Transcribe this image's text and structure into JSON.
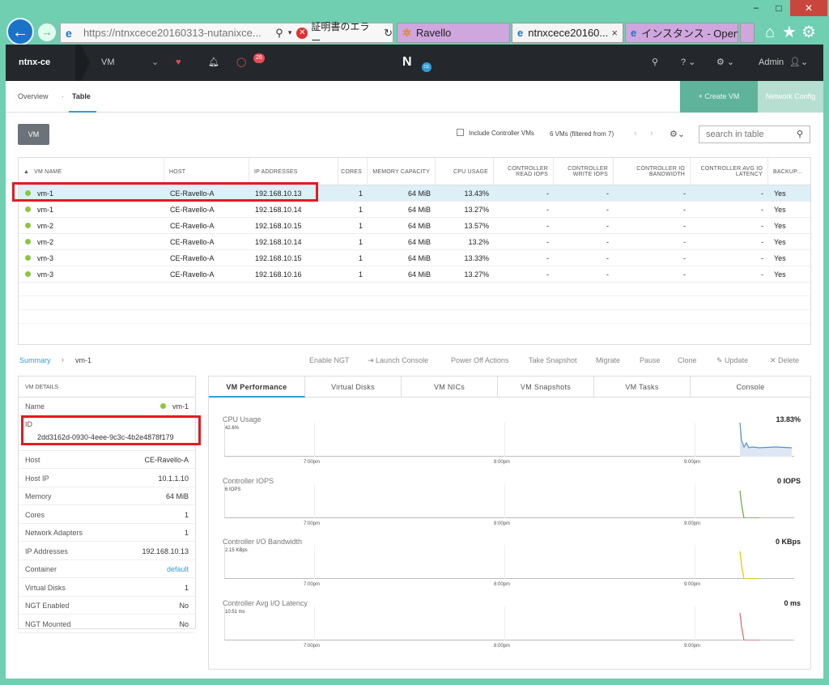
{
  "browser": {
    "url": "https://ntnxcece20160313-nutanixce...",
    "cert_error": "証明書のエラー",
    "tabs": [
      {
        "label": "Ravello"
      },
      {
        "label": "ntnxcece20160...",
        "close": "×"
      },
      {
        "label": "インスタンス - OpenS...",
        "close": "×"
      }
    ],
    "window_controls": {
      "minimize": "−",
      "maximize": "□",
      "close": "✕"
    }
  },
  "topbar": {
    "cluster": "ntnx-ce",
    "menu": "VM",
    "alert_count": "26",
    "logo": "N",
    "logo_badge": "CE",
    "user": "Admin"
  },
  "subnav": {
    "overview": "Overview",
    "table": "Table",
    "create_vm": "+   Create VM",
    "network_config": "Network Config"
  },
  "toolbar": {
    "vm_button": "VM",
    "include_controller": "Include Controller VMs",
    "count": "6 VMs (filtered from 7)",
    "search_placeholder": "search in table"
  },
  "table": {
    "columns": [
      "VM NAME",
      "HOST",
      "IP ADDRESSES",
      "CORES",
      "MEMORY CAPACITY",
      "CPU USAGE",
      "CONTROLLER READ IOPS",
      "CONTROLLER WRITE IOPS",
      "CONTROLLER IO BANDWIDTH",
      "CONTROLLER AVG IO LATENCY",
      "BACKUP..."
    ],
    "rows": [
      {
        "name": "vm-1",
        "host": "CE-Ravello-A",
        "ip": "192.168.10.13",
        "cores": "1",
        "mem": "64 MiB",
        "cpu": "13.43%",
        "rio": "-",
        "wio": "-",
        "bw": "-",
        "lat": "-",
        "backup": "Yes"
      },
      {
        "name": "vm-1",
        "host": "CE-Ravello-A",
        "ip": "192.168.10.14",
        "cores": "1",
        "mem": "64 MiB",
        "cpu": "13.27%",
        "rio": "-",
        "wio": "-",
        "bw": "-",
        "lat": "-",
        "backup": "Yes"
      },
      {
        "name": "vm-2",
        "host": "CE-Ravello-A",
        "ip": "192.168.10.15",
        "cores": "1",
        "mem": "64 MiB",
        "cpu": "13.57%",
        "rio": "-",
        "wio": "-",
        "bw": "-",
        "lat": "-",
        "backup": "Yes"
      },
      {
        "name": "vm-2",
        "host": "CE-Ravello-A",
        "ip": "192.168.10.14",
        "cores": "1",
        "mem": "64 MiB",
        "cpu": "13.2%",
        "rio": "-",
        "wio": "-",
        "bw": "-",
        "lat": "-",
        "backup": "Yes"
      },
      {
        "name": "vm-3",
        "host": "CE-Ravello-A",
        "ip": "192.168.10.15",
        "cores": "1",
        "mem": "64 MiB",
        "cpu": "13.33%",
        "rio": "-",
        "wio": "-",
        "bw": "-",
        "lat": "-",
        "backup": "Yes"
      },
      {
        "name": "vm-3",
        "host": "CE-Ravello-A",
        "ip": "192.168.10.16",
        "cores": "1",
        "mem": "64 MiB",
        "cpu": "13.27%",
        "rio": "-",
        "wio": "-",
        "bw": "-",
        "lat": "-",
        "backup": "Yes"
      }
    ]
  },
  "breadcrumb": {
    "summary": "Summary",
    "current": "vm-1"
  },
  "actions": [
    "Enable NGT",
    "Launch Console",
    "Power Off Actions",
    "Take Snapshot",
    "Migrate",
    "Pause",
    "Clone",
    "Update",
    "Delete"
  ],
  "details": {
    "heading": "VM DETAILS",
    "name_label": "Name",
    "name_value": "vm-1",
    "id_label": "ID",
    "id_value": "2dd3162d-0930-4eee-9c3c-4b2e4878f179",
    "rows": [
      {
        "label": "Host",
        "value": "CE-Ravello-A"
      },
      {
        "label": "Host IP",
        "value": "10.1.1.10"
      },
      {
        "label": "Memory",
        "value": "64 MiB"
      },
      {
        "label": "Cores",
        "value": "1"
      },
      {
        "label": "Network Adapters",
        "value": "1"
      },
      {
        "label": "IP Addresses",
        "value": "192.168.10.13"
      },
      {
        "label": "Container",
        "value": "default"
      },
      {
        "label": "Virtual Disks",
        "value": "1"
      },
      {
        "label": "NGT Enabled",
        "value": "No"
      },
      {
        "label": "NGT Mounted",
        "value": "No"
      }
    ]
  },
  "perf_tabs": [
    "VM Performance",
    "Virtual Disks",
    "VM NICs",
    "VM Snapshots",
    "VM Tasks",
    "Console"
  ],
  "charts": [
    {
      "title": "CPU Usage",
      "value": "13.83%",
      "max": "42.6%",
      "color": "#5b8fd0"
    },
    {
      "title": "Controller IOPS",
      "value": "0 IOPS",
      "max": "6 IOPS",
      "color": "#6aa84f"
    },
    {
      "title": "Controller I/O Bandwidth",
      "value": "0 KBps",
      "max": "2.15 KBps",
      "color": "#e6c700"
    },
    {
      "title": "Controller Avg I/O Latency",
      "value": "0 ms",
      "max": "10.51 ms",
      "color": "#e06666"
    }
  ],
  "time_labels": [
    "7:00pm",
    "8:00pm",
    "9:00pm"
  ],
  "colors": {
    "accent": "#2f9ed9",
    "highlight": "#e31b23",
    "topbar": "#24282c",
    "create": "#5eb39a"
  }
}
